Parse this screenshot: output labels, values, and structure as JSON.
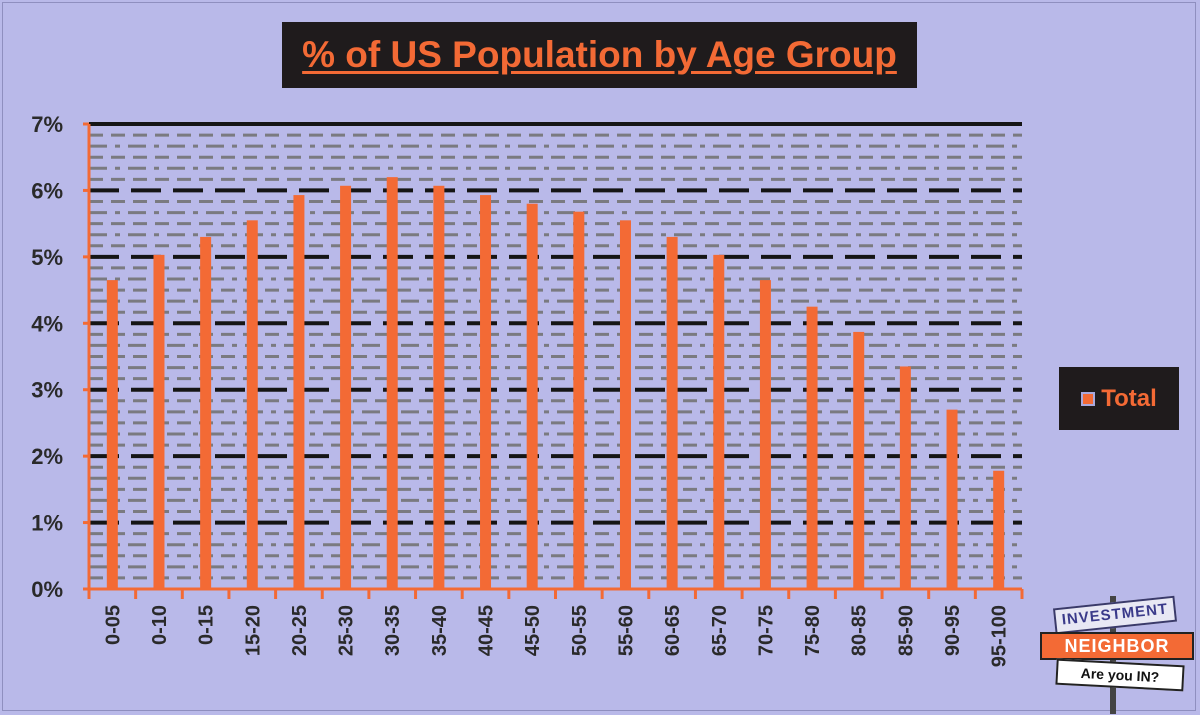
{
  "colors": {
    "background": "#b9b9e9",
    "bar": "#f36a35",
    "title_box": "#1f1b1c",
    "major_grid": "#151515",
    "minor_grid": "#7a7a80"
  },
  "chart_data": {
    "type": "bar",
    "title": "% of US Population by Age Group",
    "xlabel": "",
    "ylabel": "",
    "ylim": [
      0,
      7
    ],
    "y_ticks": [
      "0%",
      "1%",
      "2%",
      "3%",
      "4%",
      "5%",
      "6%",
      "7%"
    ],
    "grid": true,
    "legend_position": "right",
    "categories": [
      "0-05",
      "0-10",
      "0-15",
      "15-20",
      "20-25",
      "25-30",
      "30-35",
      "35-40",
      "40-45",
      "45-50",
      "50-55",
      "55-60",
      "60-65",
      "65-70",
      "70-75",
      "75-80",
      "80-85",
      "85-90",
      "90-95",
      "95-100"
    ],
    "series": [
      {
        "name": "Total",
        "values": [
          4.65,
          5.03,
          5.3,
          5.55,
          5.93,
          6.07,
          6.2,
          6.07,
          5.93,
          5.8,
          5.68,
          5.55,
          5.3,
          5.03,
          4.65,
          4.25,
          3.87,
          3.35,
          2.7,
          1.78
        ]
      }
    ]
  },
  "logo": {
    "line1": "INVESTMENT",
    "line2": "NEIGHBOR",
    "line3": "Are you IN?"
  }
}
